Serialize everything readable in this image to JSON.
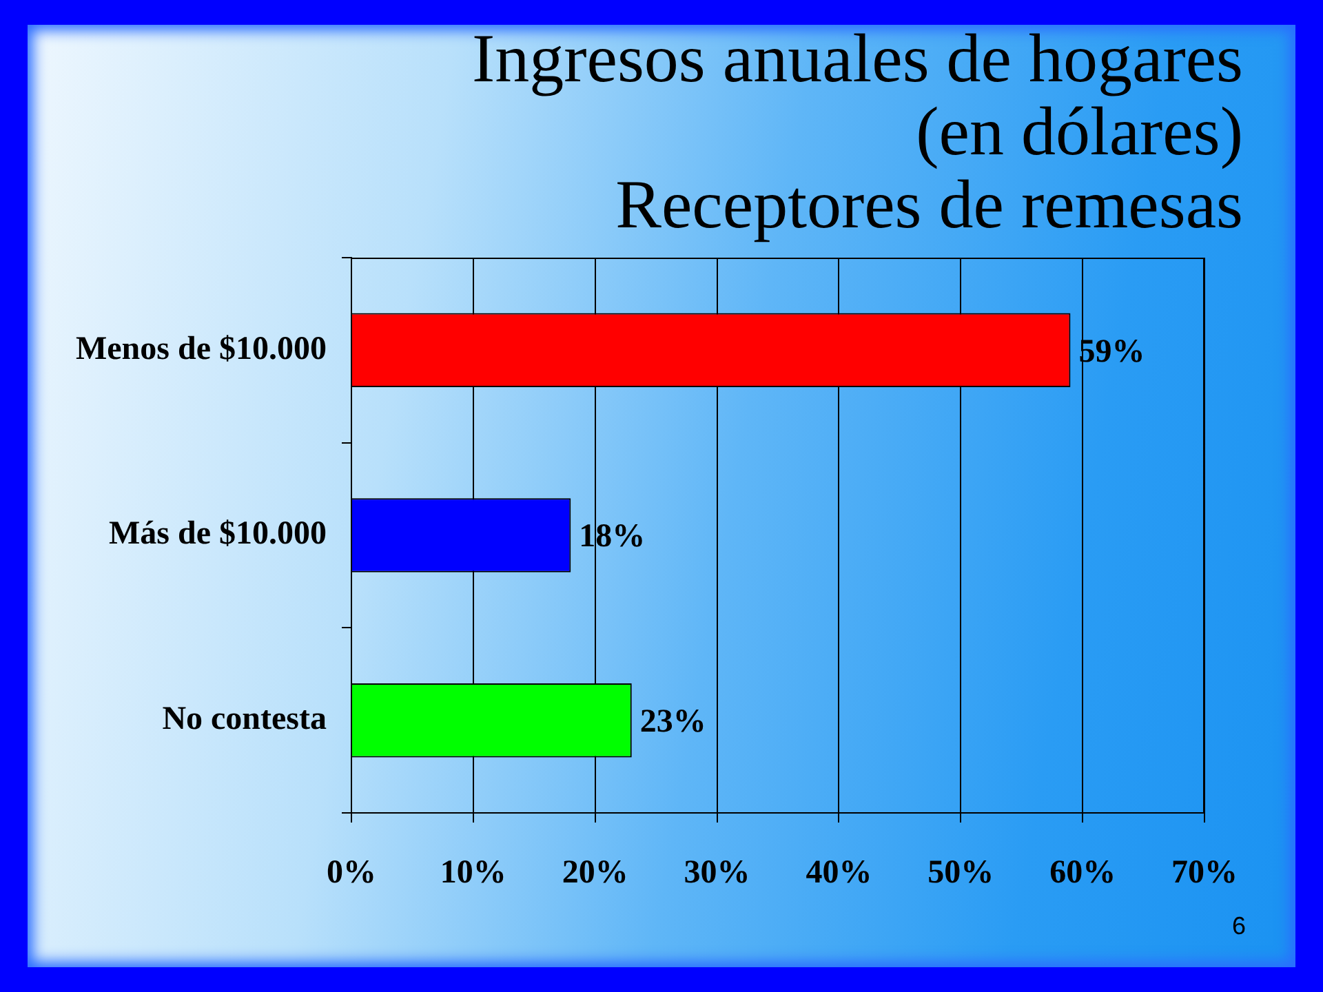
{
  "chart_data": {
    "type": "bar",
    "orientation": "horizontal",
    "title": "Ingresos anuales de hogares\n(en dólares)\nReceptores de remesas",
    "categories": [
      "Menos de $10.000",
      "Más de $10.000",
      "No contesta"
    ],
    "values": [
      59,
      18,
      23
    ],
    "colors": [
      "#ff0000",
      "#0000ff",
      "#00ff00"
    ],
    "value_labels": [
      "59%",
      "18%",
      "23%"
    ],
    "xlim": [
      0,
      70
    ],
    "xticks": [
      {
        "value": 0,
        "label": "0%"
      },
      {
        "value": 10,
        "label": "10%"
      },
      {
        "value": 20,
        "label": "20%"
      },
      {
        "value": 30,
        "label": "30%"
      },
      {
        "value": 40,
        "label": "40%"
      },
      {
        "value": 50,
        "label": "50%"
      },
      {
        "value": 60,
        "label": "60%"
      },
      {
        "value": 70,
        "label": "70%"
      }
    ],
    "grid": "x",
    "annotations": [
      "6"
    ]
  }
}
